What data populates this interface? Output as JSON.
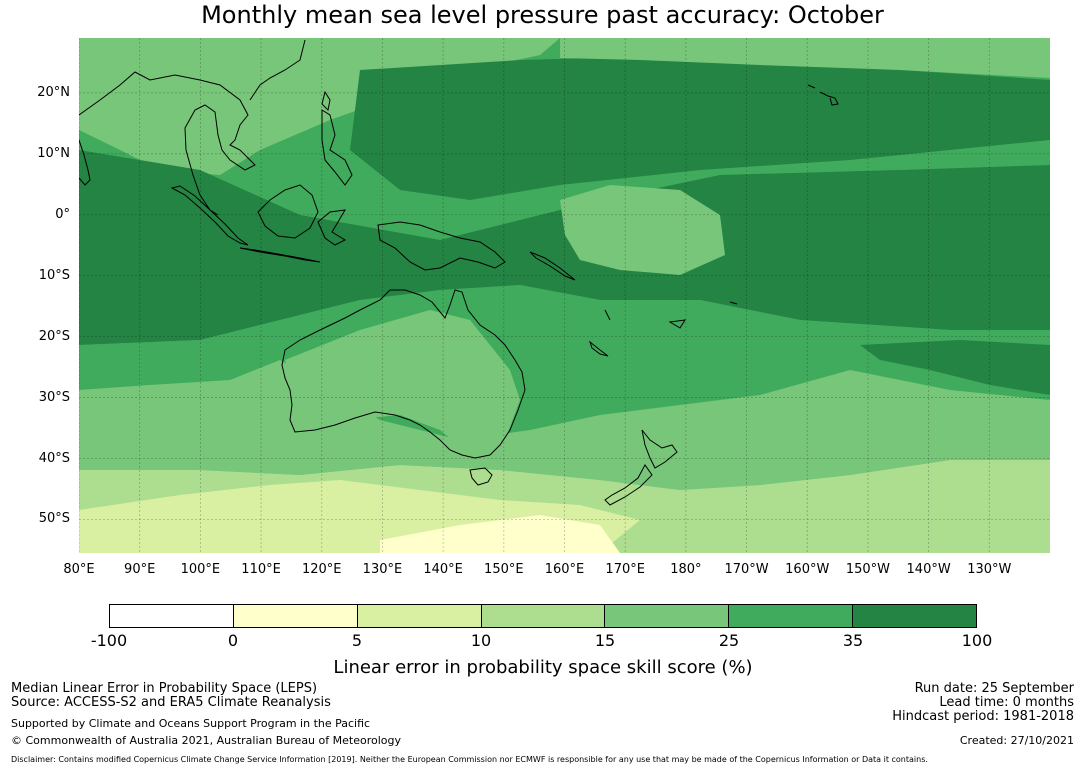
{
  "title": "Monthly mean sea level pressure past accuracy: October",
  "map": {
    "lat_labels": [
      "20°N",
      "10°N",
      "0°",
      "10°S",
      "20°S",
      "30°S",
      "40°S",
      "50°S"
    ],
    "lon_labels": [
      "80°E",
      "90°E",
      "100°E",
      "110°E",
      "120°E",
      "130°E",
      "140°E",
      "150°E",
      "160°E",
      "170°E",
      "180°",
      "170°W",
      "160°W",
      "150°W",
      "140°W",
      "130°W"
    ],
    "lat_values": [
      20,
      10,
      0,
      -10,
      -20,
      -30,
      -40,
      -50
    ],
    "lon_values": [
      80,
      90,
      100,
      110,
      120,
      130,
      140,
      150,
      160,
      170,
      180,
      190,
      200,
      210,
      220,
      230
    ],
    "extent": {
      "lon_min": 80,
      "lon_max": 240,
      "lat_min": -55.5,
      "lat_max": 29
    }
  },
  "colorbar": {
    "ticks": [
      "-100",
      "0",
      "5",
      "10",
      "15",
      "25",
      "35",
      "100"
    ],
    "colors": [
      "#ffffff",
      "#ffffcc",
      "#d9f0a3",
      "#addd8e",
      "#78c679",
      "#41ab5d",
      "#238443"
    ],
    "label": "Linear error in probability space skill score (%)"
  },
  "footer": {
    "method": "Median Linear Error in Probability Space (LEPS)",
    "source": "Source: ACCESS-S2 and ERA5 Climate Reanalysis",
    "support": "Supported by Climate and Oceans Support Program in the Pacific",
    "copyright": "© Commonwealth of Australia 2021, Australian Bureau of Meteorology",
    "disclaimer": "Disclaimer: Contains modified Copernicus Climate Change Service Information [2019]. Neither the European Commission nor ECMWF is responsible for any use that may be made of the Copernicus Information or Data it contains.",
    "run_date": "Run date: 25 September",
    "lead_time": "Lead time: 0 months",
    "hindcast": "Hindcast period: 1981-2018",
    "created": "Created: 27/10/2021"
  }
}
